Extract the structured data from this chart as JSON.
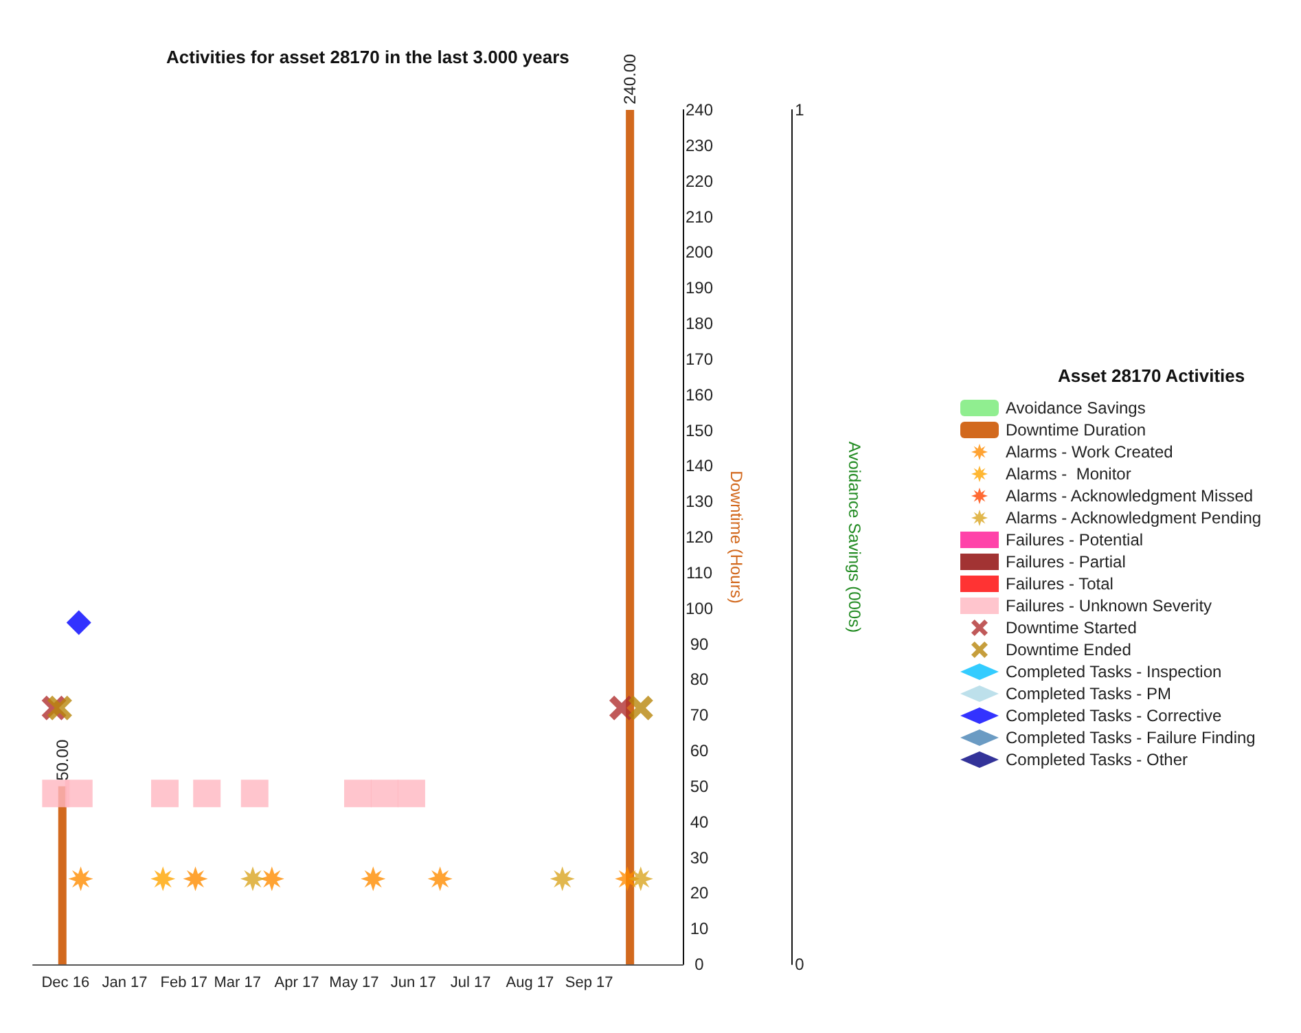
{
  "chart_data": {
    "type": "scatter",
    "title": "Activities for asset 28170 in the last 3.000 years",
    "legend_title": "Asset 28170 Activities",
    "ylabel": "Downtime (Hours)",
    "y2label": "Avoidance Savings (000s)",
    "xlim": [
      "2016-11-14",
      "2017-10-20"
    ],
    "xticks": [
      {
        "value": "2016-12-01",
        "label": "Dec 16"
      },
      {
        "value": "2017-01-01",
        "label": "Jan 17"
      },
      {
        "value": "2017-02-01",
        "label": "Feb 17"
      },
      {
        "value": "2017-03-01",
        "label": "Mar 17"
      },
      {
        "value": "2017-04-01",
        "label": "Apr 17"
      },
      {
        "value": "2017-05-01",
        "label": "May 17"
      },
      {
        "value": "2017-06-01",
        "label": "Jun 17"
      },
      {
        "value": "2017-07-01",
        "label": "Jul 17"
      },
      {
        "value": "2017-08-01",
        "label": "Aug 17"
      },
      {
        "value": "2017-09-01",
        "label": "Sep 17"
      }
    ],
    "ylim": [
      0,
      240
    ],
    "yticks": [
      0,
      10,
      20,
      30,
      40,
      50,
      60,
      70,
      80,
      90,
      100,
      110,
      120,
      130,
      140,
      150,
      160,
      170,
      180,
      190,
      200,
      210,
      220,
      230,
      240
    ],
    "y2lim": [
      0,
      1
    ],
    "y2ticks": [
      0,
      1
    ],
    "legend": "right",
    "grid": false,
    "series": [
      {
        "name": "Avoidance Savings",
        "type": "bar",
        "color": "#90ee90"
      },
      {
        "name": "Downtime Duration",
        "type": "bar",
        "color": "#d2691e",
        "x": [
          "2016-11-27",
          "2017-09-20"
        ],
        "values": [
          50,
          240
        ],
        "value_labels": [
          "50.00",
          "240.00"
        ]
      },
      {
        "name": "Alarms - Work Created",
        "marker": "star",
        "color": "#ff8c00",
        "x": [
          "2016-12-09",
          "2017-02-07",
          "2017-03-19",
          "2017-05-11",
          "2017-06-15",
          "2017-09-21"
        ],
        "values": [
          24,
          24,
          24,
          24,
          24,
          24
        ]
      },
      {
        "name": "Alarms -  Monitor",
        "marker": "star",
        "color": "#ffa500",
        "x": [
          "2017-01-21"
        ],
        "values": [
          24
        ]
      },
      {
        "name": "Alarms - Acknowledgment Missed",
        "marker": "star",
        "color": "#ff4500"
      },
      {
        "name": "Alarms - Acknowledgment Pending",
        "marker": "star",
        "color": "#daa520",
        "x": [
          "2017-03-09",
          "2017-08-18",
          "2017-09-28"
        ],
        "values": [
          24,
          24,
          24
        ]
      },
      {
        "name": "Failures - Potential",
        "marker": "square",
        "color": "#ff1493"
      },
      {
        "name": "Failures - Partial",
        "marker": "square",
        "color": "#8b0000"
      },
      {
        "name": "Failures - Total",
        "marker": "square",
        "color": "#ff0000"
      },
      {
        "name": "Failures - Unknown Severity",
        "marker": "square",
        "color": "#ffb6c1",
        "x": [
          "2016-11-26",
          "2016-12-08",
          "2017-01-22",
          "2017-02-13",
          "2017-03-10",
          "2017-05-03",
          "2017-05-17",
          "2017-05-31"
        ],
        "values": [
          48,
          48,
          48,
          48,
          48,
          48,
          48,
          48
        ]
      },
      {
        "name": "Downtime Started",
        "marker": "cross",
        "color": "#b03030",
        "x": [
          "2016-11-25",
          "2017-09-18"
        ],
        "values": [
          72,
          72
        ]
      },
      {
        "name": "Downtime Ended",
        "marker": "cross",
        "color": "#b8860b",
        "x": [
          "2016-11-28",
          "2017-09-28"
        ],
        "values": [
          72,
          72
        ]
      },
      {
        "name": "Completed Tasks - Inspection",
        "marker": "diamond",
        "color": "#00bfff"
      },
      {
        "name": "Completed Tasks - PM",
        "marker": "diamond",
        "color": "#add8e6"
      },
      {
        "name": "Completed Tasks - Corrective",
        "marker": "diamond",
        "color": "#0000ff",
        "x": [
          "2016-12-08"
        ],
        "values": [
          96
        ]
      },
      {
        "name": "Completed Tasks - Failure Finding",
        "marker": "diamond",
        "color": "#4682b4"
      },
      {
        "name": "Completed Tasks - Other",
        "marker": "diamond",
        "color": "#000080"
      }
    ]
  }
}
